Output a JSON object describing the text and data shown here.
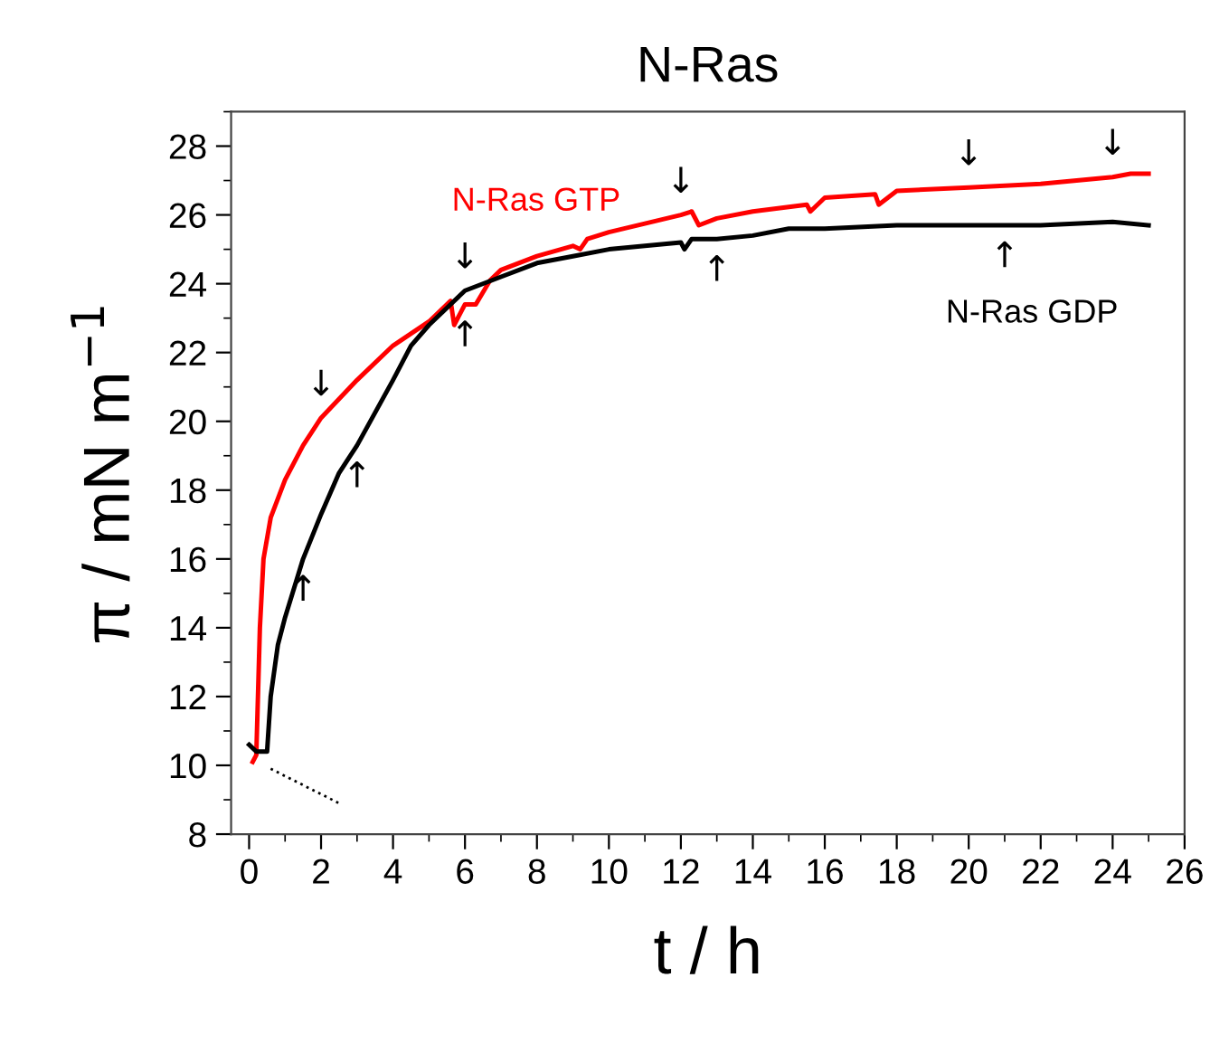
{
  "chart_data": {
    "type": "line",
    "title": "N-Ras",
    "xlabel": "t / h",
    "ylabel": "π / mN m$^{−1}$",
    "xlim": [
      -0.5,
      26
    ],
    "xticks": [
      0,
      2,
      4,
      6,
      8,
      10,
      12,
      14,
      16,
      18,
      20,
      22,
      24,
      26
    ],
    "ylim": [
      8,
      29
    ],
    "yticks": [
      8,
      10,
      12,
      14,
      16,
      18,
      20,
      22,
      24,
      26,
      28
    ],
    "grid": false,
    "legend": false,
    "marker": "none",
    "line_style": "solid",
    "series": [
      {
        "name": "N-Ras GTP",
        "color": "#ff0000",
        "x": [
          0.1,
          0.2,
          0.3,
          0.4,
          0.6,
          1,
          1.5,
          2,
          3,
          4,
          5,
          5.6,
          5.7,
          6,
          6.3,
          6.7,
          7,
          8,
          9,
          9.2,
          9.4,
          10,
          12,
          12.3,
          12.5,
          13,
          14,
          15.5,
          15.6,
          16,
          17.4,
          17.5,
          18,
          20,
          22,
          23,
          24,
          24.5,
          25
        ],
        "values": [
          10.1,
          10.3,
          14,
          16,
          17.2,
          18.3,
          19.3,
          20.1,
          21.2,
          22.2,
          22.9,
          23.5,
          22.8,
          23.4,
          23.4,
          24.1,
          24.4,
          24.8,
          25.1,
          25.0,
          25.3,
          25.5,
          26.0,
          26.1,
          25.7,
          25.9,
          26.1,
          26.3,
          26.1,
          26.5,
          26.6,
          26.3,
          26.7,
          26.8,
          26.9,
          27.0,
          27.1,
          27.2,
          27.2
        ]
      },
      {
        "name": "N-Ras GDP",
        "color": "#000000",
        "x": [
          0,
          0.2,
          0.5,
          0.6,
          0.8,
          1,
          1.5,
          2,
          2.5,
          3,
          4,
          4.5,
          5,
          5.5,
          6,
          7,
          8,
          9,
          10,
          11,
          12,
          12.1,
          12.3,
          13,
          14,
          15,
          16,
          18,
          20,
          21,
          22,
          24,
          25
        ],
        "values": [
          10.6,
          10.4,
          10.4,
          12,
          13.5,
          14.3,
          16,
          17.3,
          18.5,
          19.3,
          21.2,
          22.2,
          22.8,
          23.3,
          23.8,
          24.2,
          24.6,
          24.8,
          25.0,
          25.1,
          25.2,
          25.0,
          25.3,
          25.3,
          25.4,
          25.6,
          25.6,
          25.7,
          25.7,
          25.7,
          25.7,
          25.8,
          25.7
        ]
      },
      {
        "color": "#000000",
        "line_style": "dotted",
        "x": [
          0.6,
          2.5
        ],
        "values": [
          9.9,
          8.9
        ]
      }
    ],
    "annotations": [
      {
        "text": "↓",
        "x": 2,
        "y": 20.1
      },
      {
        "text": "↓",
        "x": 6,
        "y": 23.8
      },
      {
        "text": "↓",
        "x": 12,
        "y": 26.0
      },
      {
        "text": "↓",
        "x": 20,
        "y": 26.8
      },
      {
        "text": "↓",
        "x": 24,
        "y": 27.1
      },
      {
        "text": "↑",
        "x": 1.5,
        "y": 16
      },
      {
        "text": "↑",
        "x": 3,
        "y": 19.3
      },
      {
        "text": "↑",
        "x": 6,
        "y": 23.4
      },
      {
        "text": "↑",
        "x": 13,
        "y": 25.3
      },
      {
        "text": "↑",
        "x": 21,
        "y": 25.7
      }
    ]
  }
}
